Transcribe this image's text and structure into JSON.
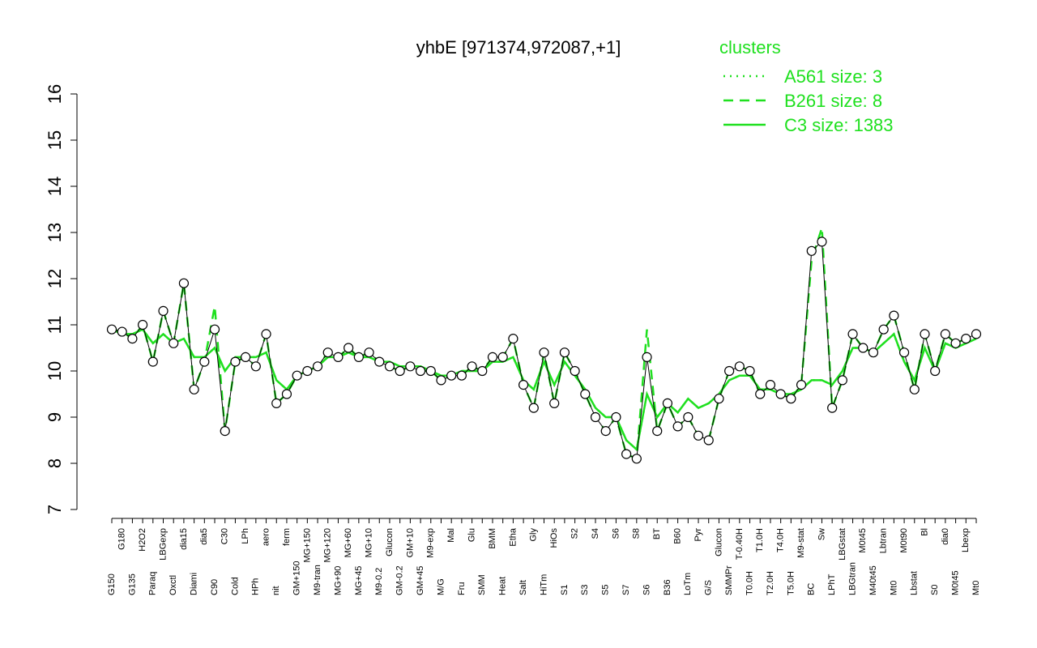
{
  "chart_data": {
    "type": "line",
    "title": "yhbE [971374,972087,+1]",
    "legend_title": "clusters",
    "categories": [
      "G150",
      "G180",
      "G135",
      "H2O2",
      "Paraq",
      "LBGexp",
      "Oxctl",
      "dia15",
      "Diami",
      "dia5",
      "C90",
      "C30",
      "Cold",
      "LPh",
      "HPh",
      "aero",
      "nit",
      "ferm",
      "GM+150",
      "MG+150",
      "M9-tran",
      "MG+120",
      "MG+90",
      "MG+60",
      "MG+45",
      "MG+10",
      "M9-0.2",
      "Glucon",
      "GM-0.2",
      "GM+10",
      "GM+45",
      "M9-exp",
      "M/G",
      "Mal",
      "Fru",
      "Glu",
      "SMM",
      "BMM",
      "Heat",
      "Etha",
      "Salt",
      "Gly",
      "HiTm",
      "HiOs",
      "S1",
      "S2",
      "S3",
      "S4",
      "S5",
      "S6",
      "S7",
      "S8",
      "S6",
      "BT",
      "B36",
      "B60",
      "LoTm",
      "Pyr",
      "G/S",
      "Glucon",
      "SMMPr",
      "T-0.40H",
      "T0.0H",
      "T1.0H",
      "T2.0H",
      "T4.0H",
      "T5.0H",
      "M9-stat",
      "BC",
      "Sw",
      "LPhT",
      "LBGstat",
      "LBGtran",
      "M0t45",
      "M40t45",
      "Lbtran",
      "Mt0",
      "M0t90",
      "Lbstat",
      "Bl",
      "S0",
      "dia0",
      "M0t45",
      "Lbexp",
      "Mt0"
    ],
    "values": [
      10.9,
      10.85,
      10.7,
      11.0,
      10.2,
      11.3,
      10.6,
      11.9,
      9.6,
      10.2,
      10.9,
      8.7,
      10.2,
      10.3,
      10.1,
      10.8,
      9.3,
      9.5,
      9.9,
      10.0,
      10.1,
      10.4,
      10.3,
      10.5,
      10.3,
      10.4,
      10.2,
      10.1,
      10.0,
      10.1,
      10.0,
      10.0,
      9.8,
      9.9,
      9.9,
      10.1,
      10.0,
      10.3,
      10.3,
      10.7,
      9.7,
      9.2,
      10.4,
      9.3,
      10.4,
      10.0,
      9.5,
      9.0,
      8.7,
      9.0,
      8.2,
      8.1,
      10.3,
      8.7,
      9.3,
      8.8,
      9.0,
      8.6,
      8.5,
      9.4,
      10.0,
      10.1,
      10.0,
      9.5,
      9.7,
      9.5,
      9.4,
      9.7,
      12.6,
      12.8,
      9.2,
      9.8,
      10.8,
      10.5,
      10.4,
      10.9,
      11.2,
      10.4,
      9.6,
      10.8,
      10.0,
      10.8,
      10.6,
      10.7,
      10.8
    ],
    "series": [
      {
        "name": "A561 size: 3",
        "color": "#1fe01f",
        "dash": "dotted",
        "values": [
          10.9,
          10.8,
          10.8,
          10.9,
          10.6,
          10.8,
          10.6,
          10.7,
          10.3,
          10.3,
          10.5,
          10.0,
          10.3,
          10.3,
          10.3,
          10.4,
          9.8,
          9.6,
          9.9,
          10.0,
          10.1,
          10.3,
          10.3,
          10.4,
          10.3,
          10.3,
          10.2,
          10.2,
          10.1,
          10.1,
          10.1,
          10.0,
          9.9,
          9.9,
          10.0,
          10.0,
          10.0,
          10.2,
          10.2,
          10.3,
          9.8,
          9.6,
          10.2,
          9.7,
          10.2,
          9.9,
          9.6,
          9.2,
          9.0,
          9.0,
          8.5,
          8.3,
          9.5,
          9.0,
          9.3,
          9.1,
          9.4,
          9.2,
          9.3,
          9.5,
          9.8,
          9.9,
          9.9,
          9.6,
          9.6,
          9.5,
          9.5,
          9.6,
          9.8,
          9.8,
          9.7,
          10.0,
          10.5,
          10.5,
          10.4,
          10.6,
          10.8,
          10.2,
          9.8,
          10.5,
          10.0,
          10.6,
          10.5,
          10.6,
          10.7
        ]
      },
      {
        "name": "B261 size: 8",
        "color": "#1fe01f",
        "dash": "dashed",
        "values": [
          10.9,
          10.85,
          10.7,
          11.0,
          10.2,
          11.3,
          10.6,
          11.9,
          9.6,
          10.2,
          11.4,
          8.7,
          10.2,
          10.3,
          10.1,
          10.8,
          9.3,
          9.5,
          9.9,
          10.0,
          10.1,
          10.4,
          10.3,
          10.5,
          10.3,
          10.4,
          10.2,
          10.1,
          10.0,
          10.1,
          10.0,
          10.0,
          9.8,
          9.9,
          9.9,
          10.1,
          10.0,
          10.3,
          10.3,
          10.7,
          9.7,
          9.2,
          10.4,
          9.3,
          10.4,
          10.0,
          9.5,
          9.0,
          8.7,
          9.0,
          8.2,
          8.1,
          10.9,
          8.7,
          9.3,
          8.8,
          9.0,
          8.6,
          8.5,
          9.4,
          10.0,
          10.1,
          10.0,
          9.5,
          9.7,
          9.5,
          9.4,
          9.7,
          12.4,
          13.1,
          9.2,
          9.8,
          10.8,
          10.5,
          10.4,
          10.9,
          11.2,
          10.4,
          9.6,
          10.8,
          10.0,
          10.8,
          10.6,
          10.7,
          10.8
        ]
      },
      {
        "name": "C3 size: 1383",
        "color": "#1fe01f",
        "dash": "solid",
        "values": [
          10.9,
          10.8,
          10.8,
          10.9,
          10.6,
          10.8,
          10.6,
          10.7,
          10.3,
          10.3,
          10.5,
          10.0,
          10.3,
          10.3,
          10.3,
          10.4,
          9.8,
          9.6,
          9.9,
          10.0,
          10.1,
          10.3,
          10.3,
          10.4,
          10.3,
          10.3,
          10.2,
          10.2,
          10.1,
          10.1,
          10.1,
          10.0,
          9.9,
          9.9,
          10.0,
          10.0,
          10.0,
          10.2,
          10.2,
          10.3,
          9.8,
          9.6,
          10.2,
          9.7,
          10.2,
          9.9,
          9.6,
          9.2,
          9.0,
          9.0,
          8.5,
          8.3,
          9.5,
          9.0,
          9.3,
          9.1,
          9.4,
          9.2,
          9.3,
          9.5,
          9.8,
          9.9,
          9.9,
          9.6,
          9.6,
          9.5,
          9.5,
          9.6,
          9.8,
          9.8,
          9.7,
          10.0,
          10.5,
          10.5,
          10.4,
          10.6,
          10.8,
          10.2,
          9.8,
          10.5,
          10.0,
          10.6,
          10.5,
          10.6,
          10.7
        ]
      }
    ],
    "ylim": [
      7,
      16
    ],
    "yticks": [
      7,
      8,
      9,
      10,
      11,
      12,
      13,
      14,
      15,
      16
    ]
  }
}
